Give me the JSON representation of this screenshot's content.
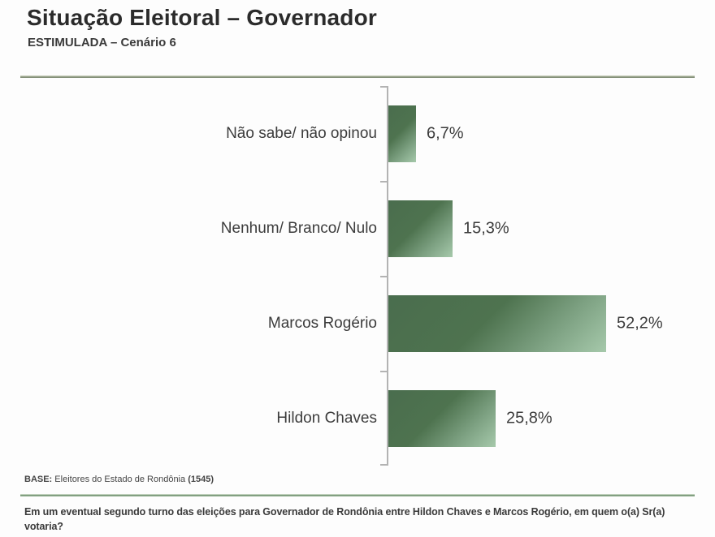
{
  "title": "Situação Eleitoral – Governador",
  "subtitle": "ESTIMULADA – Cenário 6",
  "base": {
    "label": "BASE:",
    "text": " Eleitores do Estado de Rondônia ",
    "count": "(1545)"
  },
  "question": "Em um eventual segundo turno das eleições para Governador de Rondônia entre Hildon Chaves e Marcos Rogério, em quem o(a) Sr(a) votaria?",
  "colors": {
    "bar_dark": "#4a6d4e",
    "bar_mid": "#4e734f",
    "bar_mid2": "#7da182",
    "bar_light": "#a6c9ab",
    "axis": "#b3b3b3",
    "text": "#3d3d3d"
  },
  "chart_data": {
    "type": "bar",
    "orientation": "horizontal",
    "title": "Situação Eleitoral – Governador",
    "subtitle": "ESTIMULADA – Cenário 6",
    "categories": [
      "Não sabe/ não opinou",
      "Nenhum/ Branco/ Nulo",
      "Marcos Rogério",
      "Hildon Chaves"
    ],
    "values": [
      6.7,
      15.3,
      52.2,
      25.8
    ],
    "value_labels": [
      "6,7%",
      "15,3%",
      "52,2%",
      "25,8%"
    ],
    "xlabel": "",
    "ylabel": "",
    "xlim": [
      0,
      78
    ],
    "grid": false,
    "legend": false,
    "bar_color_gradient": [
      "#4a6d4e",
      "#a6c9ab"
    ]
  }
}
